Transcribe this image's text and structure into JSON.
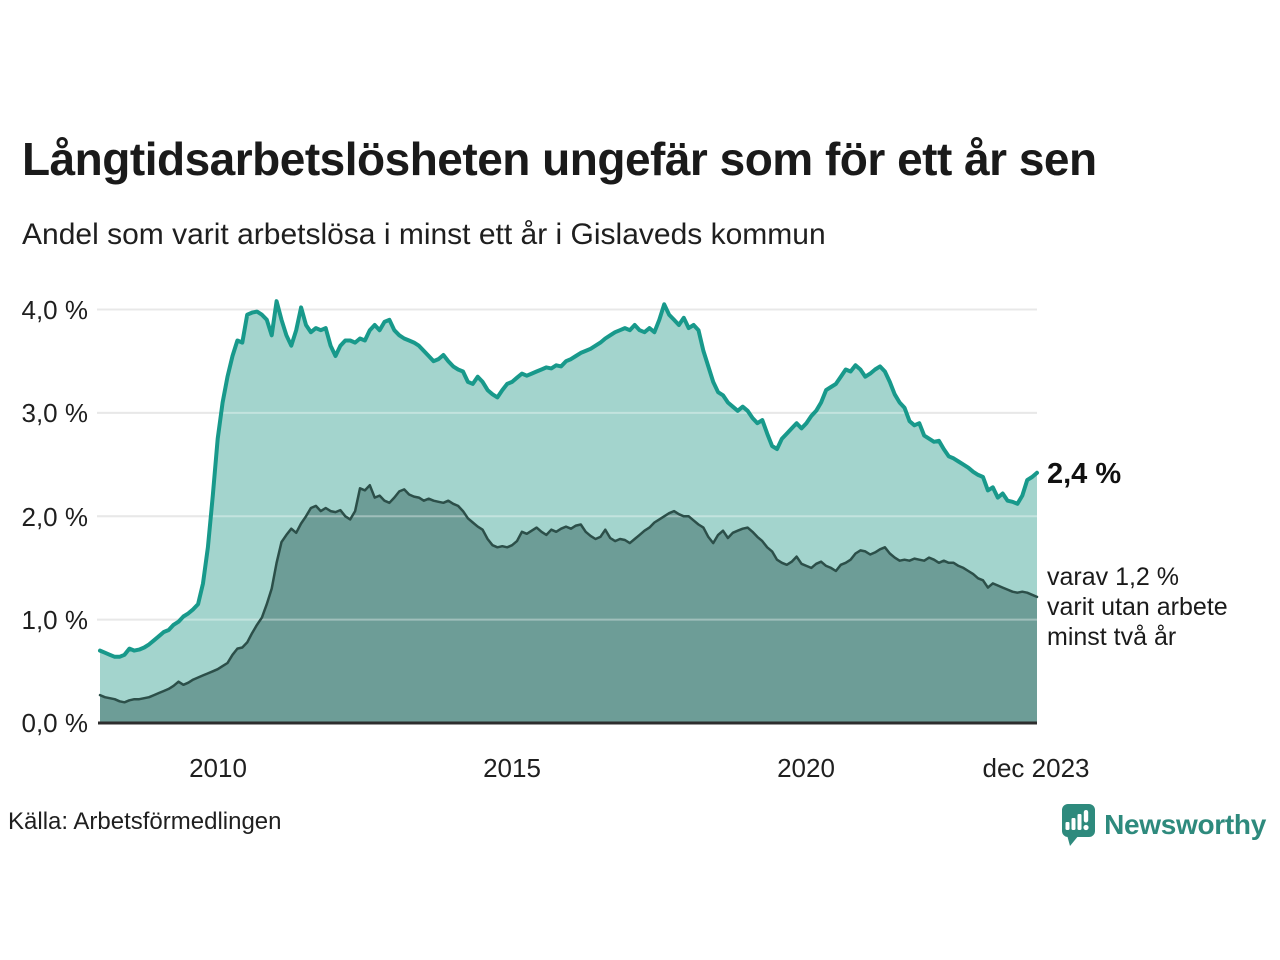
{
  "header": {
    "title": "Långtidsarbetslösheten ungefär som för ett år sen",
    "subtitle": "Andel som varit arbetslösa i minst ett år i Gislaveds kommun"
  },
  "chart": {
    "y_axis": {
      "labels": [
        "4,0 %",
        "3,0 %",
        "2,0 %",
        "1,0 %",
        "0,0 %"
      ]
    },
    "x_axis": {
      "labels": [
        "2010",
        "2015",
        "2020",
        "dec 2023"
      ]
    },
    "annotations": {
      "latest": "2,4 %",
      "line1": "varav 1,2 %",
      "line2": "varit utan arbete",
      "line3": "minst två år"
    }
  },
  "footer": {
    "source": "Källa: Arbetsförmedlingen",
    "brand": "Newsworthy"
  },
  "colors": {
    "series1_line": "#18998b",
    "series1_fill": "#a3d4cd",
    "series2_line": "#2c4f49",
    "series2_fill": "#6d9d97",
    "gridline": "#dcdcdc",
    "baseline": "#2d2d2d",
    "brand_teal": "#2e8a7d"
  },
  "chart_data": {
    "type": "area",
    "title": "Långtidsarbetslösheten ungefär som för ett år sen",
    "subtitle": "Andel som varit arbetslösa i minst ett år i Gislaveds kommun",
    "unit": "%",
    "frequency": "monthly",
    "x_start": "2008-01",
    "x_end": "2023-12",
    "ylim": [
      0,
      4.15
    ],
    "y_ticks": [
      0,
      1,
      2,
      3,
      4
    ],
    "x_ticks": [
      {
        "year": 2010,
        "label": "2010"
      },
      {
        "year": 2015,
        "label": "2015"
      },
      {
        "year": 2020,
        "label": "2020"
      },
      {
        "year": 2023.92,
        "label": "dec 2023"
      }
    ],
    "grid": true,
    "legend_position": "annotated-right",
    "series": [
      {
        "name": "Andel arbetslösa minst ett år",
        "end_value_label": "2,4 %",
        "values": [
          0.7,
          0.68,
          0.66,
          0.64,
          0.64,
          0.66,
          0.72,
          0.7,
          0.71,
          0.73,
          0.76,
          0.8,
          0.84,
          0.88,
          0.9,
          0.95,
          0.98,
          1.03,
          1.06,
          1.1,
          1.15,
          1.35,
          1.7,
          2.2,
          2.75,
          3.1,
          3.35,
          3.55,
          3.7,
          3.68,
          3.95,
          3.97,
          3.98,
          3.95,
          3.9,
          3.75,
          4.08,
          3.9,
          3.75,
          3.65,
          3.8,
          4.02,
          3.85,
          3.78,
          3.82,
          3.8,
          3.82,
          3.65,
          3.55,
          3.65,
          3.7,
          3.7,
          3.68,
          3.72,
          3.7,
          3.8,
          3.85,
          3.8,
          3.88,
          3.9,
          3.8,
          3.75,
          3.72,
          3.7,
          3.68,
          3.65,
          3.6,
          3.55,
          3.5,
          3.52,
          3.56,
          3.5,
          3.45,
          3.42,
          3.4,
          3.3,
          3.28,
          3.35,
          3.3,
          3.22,
          3.18,
          3.15,
          3.22,
          3.28,
          3.3,
          3.34,
          3.38,
          3.36,
          3.38,
          3.4,
          3.42,
          3.44,
          3.43,
          3.46,
          3.45,
          3.5,
          3.52,
          3.55,
          3.58,
          3.6,
          3.62,
          3.65,
          3.68,
          3.72,
          3.75,
          3.78,
          3.8,
          3.82,
          3.8,
          3.85,
          3.8,
          3.78,
          3.82,
          3.78,
          3.9,
          4.05,
          3.95,
          3.9,
          3.85,
          3.92,
          3.82,
          3.85,
          3.8,
          3.6,
          3.45,
          3.3,
          3.2,
          3.17,
          3.1,
          3.06,
          3.02,
          3.06,
          3.02,
          2.95,
          2.9,
          2.93,
          2.8,
          2.68,
          2.65,
          2.75,
          2.8,
          2.85,
          2.9,
          2.85,
          2.9,
          2.97,
          3.02,
          3.1,
          3.22,
          3.25,
          3.28,
          3.35,
          3.42,
          3.4,
          3.46,
          3.42,
          3.35,
          3.38,
          3.42,
          3.45,
          3.4,
          3.3,
          3.18,
          3.1,
          3.05,
          2.92,
          2.88,
          2.9,
          2.78,
          2.75,
          2.72,
          2.73,
          2.65,
          2.58,
          2.56,
          2.53,
          2.5,
          2.47,
          2.43,
          2.4,
          2.38,
          2.25,
          2.28,
          2.18,
          2.22,
          2.15,
          2.14,
          2.12,
          2.2,
          2.35,
          2.38,
          2.42
        ]
      },
      {
        "name": "varav utan arbete minst två år",
        "end_value_label": "1,2 %",
        "values": [
          0.27,
          0.25,
          0.24,
          0.23,
          0.21,
          0.2,
          0.22,
          0.23,
          0.23,
          0.24,
          0.25,
          0.27,
          0.29,
          0.31,
          0.33,
          0.36,
          0.4,
          0.37,
          0.39,
          0.42,
          0.44,
          0.46,
          0.48,
          0.5,
          0.52,
          0.55,
          0.58,
          0.66,
          0.72,
          0.73,
          0.78,
          0.87,
          0.95,
          1.02,
          1.15,
          1.3,
          1.55,
          1.75,
          1.82,
          1.88,
          1.84,
          1.93,
          2.0,
          2.08,
          2.1,
          2.05,
          2.08,
          2.05,
          2.04,
          2.06,
          2.0,
          1.97,
          2.05,
          2.27,
          2.25,
          2.3,
          2.18,
          2.2,
          2.15,
          2.13,
          2.18,
          2.24,
          2.26,
          2.21,
          2.19,
          2.18,
          2.15,
          2.17,
          2.15,
          2.14,
          2.13,
          2.15,
          2.12,
          2.1,
          2.05,
          1.98,
          1.94,
          1.9,
          1.87,
          1.78,
          1.72,
          1.7,
          1.71,
          1.7,
          1.72,
          1.76,
          1.85,
          1.83,
          1.86,
          1.89,
          1.85,
          1.82,
          1.87,
          1.85,
          1.88,
          1.9,
          1.88,
          1.91,
          1.92,
          1.85,
          1.81,
          1.78,
          1.8,
          1.87,
          1.79,
          1.76,
          1.78,
          1.77,
          1.74,
          1.78,
          1.82,
          1.86,
          1.89,
          1.94,
          1.97,
          2.0,
          2.03,
          2.05,
          2.02,
          2.0,
          2.0,
          1.96,
          1.92,
          1.89,
          1.8,
          1.74,
          1.82,
          1.86,
          1.79,
          1.84,
          1.86,
          1.88,
          1.89,
          1.85,
          1.8,
          1.76,
          1.7,
          1.66,
          1.58,
          1.55,
          1.53,
          1.56,
          1.61,
          1.54,
          1.52,
          1.5,
          1.54,
          1.56,
          1.52,
          1.5,
          1.47,
          1.53,
          1.55,
          1.58,
          1.64,
          1.67,
          1.66,
          1.63,
          1.65,
          1.68,
          1.7,
          1.64,
          1.6,
          1.57,
          1.58,
          1.57,
          1.59,
          1.58,
          1.57,
          1.6,
          1.58,
          1.55,
          1.57,
          1.55,
          1.55,
          1.52,
          1.5,
          1.47,
          1.44,
          1.4,
          1.38,
          1.31,
          1.35,
          1.33,
          1.31,
          1.29,
          1.27,
          1.26,
          1.27,
          1.26,
          1.24,
          1.22
        ]
      }
    ]
  }
}
